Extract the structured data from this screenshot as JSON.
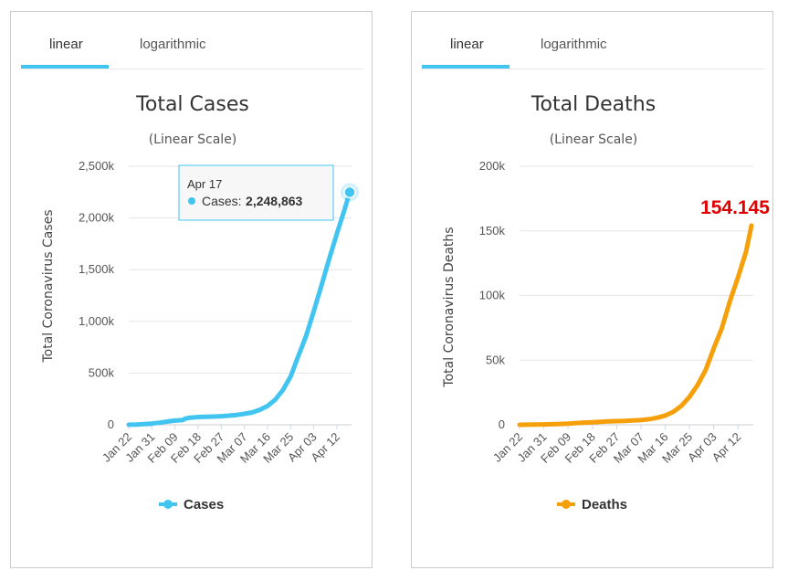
{
  "panels": [
    {
      "tabs": {
        "linear": "linear",
        "logarithmic": "logarithmic"
      },
      "legend_label": "Cases",
      "tooltip": {
        "date": "Apr 17",
        "label": "Cases:",
        "value": "2,248,863"
      },
      "annotation": ""
    },
    {
      "tabs": {
        "linear": "linear",
        "logarithmic": "logarithmic"
      },
      "legend_label": "Deaths",
      "tooltip": null,
      "annotation": "154.145"
    }
  ],
  "chart_data": [
    {
      "type": "line",
      "title": "Total Cases",
      "subtitle": "(Linear Scale)",
      "ylabel": "Total Coronavirus Cases",
      "xlabel": "",
      "color": "#42c4f0",
      "ylim": [
        0,
        2500000
      ],
      "yticks": [
        0,
        500000,
        1000000,
        1500000,
        2000000,
        2500000
      ],
      "ytick_labels": [
        "0",
        "500k",
        "1,000k",
        "1,500k",
        "2,000k",
        "2,500k"
      ],
      "xtick_labels": [
        "Jan 22",
        "Jan 31",
        "Feb 09",
        "Feb 18",
        "Feb 27",
        "Mar 07",
        "Mar 16",
        "Mar 25",
        "Apr 03",
        "Apr 12"
      ],
      "x": [
        "Jan 22",
        "Jan 25",
        "Jan 28",
        "Jan 31",
        "Feb 03",
        "Feb 06",
        "Feb 09",
        "Feb 12",
        "Feb 13",
        "Feb 15",
        "Feb 18",
        "Feb 21",
        "Feb 24",
        "Feb 27",
        "Mar 01",
        "Mar 04",
        "Mar 07",
        "Mar 10",
        "Mar 13",
        "Mar 16",
        "Mar 19",
        "Mar 22",
        "Mar 25",
        "Mar 28",
        "Mar 31",
        "Apr 03",
        "Apr 06",
        "Apr 09",
        "Apr 12",
        "Apr 15",
        "Apr 17"
      ],
      "series": [
        {
          "name": "Cases",
          "values": [
            555,
            2900,
            6100,
            11900,
            20600,
            31200,
            40600,
            45200,
            60300,
            69000,
            75200,
            76800,
            79300,
            83100,
            88400,
            95100,
            105800,
            119100,
            145200,
            182200,
            243000,
            336000,
            467000,
            664000,
            858000,
            1097000,
            1346000,
            1603000,
            1847000,
            2083000,
            2248863
          ]
        }
      ],
      "legend": "bottom",
      "grid": true
    },
    {
      "type": "line",
      "title": "Total Deaths",
      "subtitle": "(Linear Scale)",
      "ylabel": "Total Coronavirus Deaths",
      "xlabel": "",
      "color": "#f5a00a",
      "ylim": [
        0,
        200000
      ],
      "yticks": [
        0,
        50000,
        100000,
        150000,
        200000
      ],
      "ytick_labels": [
        "0",
        "50k",
        "100k",
        "150k",
        "200k"
      ],
      "xtick_labels": [
        "Jan 22",
        "Jan 31",
        "Feb 09",
        "Feb 18",
        "Feb 27",
        "Mar 07",
        "Mar 16",
        "Mar 25",
        "Apr 03",
        "Apr 12"
      ],
      "x": [
        "Jan 22",
        "Jan 25",
        "Jan 28",
        "Jan 31",
        "Feb 03",
        "Feb 06",
        "Feb 09",
        "Feb 12",
        "Feb 15",
        "Feb 18",
        "Feb 21",
        "Feb 24",
        "Feb 27",
        "Mar 01",
        "Mar 04",
        "Mar 07",
        "Mar 10",
        "Mar 13",
        "Mar 16",
        "Mar 19",
        "Mar 22",
        "Mar 25",
        "Mar 28",
        "Mar 31",
        "Apr 03",
        "Apr 06",
        "Apr 09",
        "Apr 12",
        "Apr 15",
        "Apr 17"
      ],
      "series": [
        {
          "name": "Deaths",
          "values": [
            17,
            56,
            133,
            259,
            427,
            637,
            910,
            1370,
            1666,
            2007,
            2251,
            2630,
            2810,
            2996,
            3290,
            3600,
            4300,
            5460,
            7140,
            10000,
            14600,
            21600,
            30700,
            42300,
            59200,
            74600,
            95700,
            114000,
            134000,
            154145
          ]
        }
      ],
      "legend": "bottom",
      "grid": true
    }
  ]
}
